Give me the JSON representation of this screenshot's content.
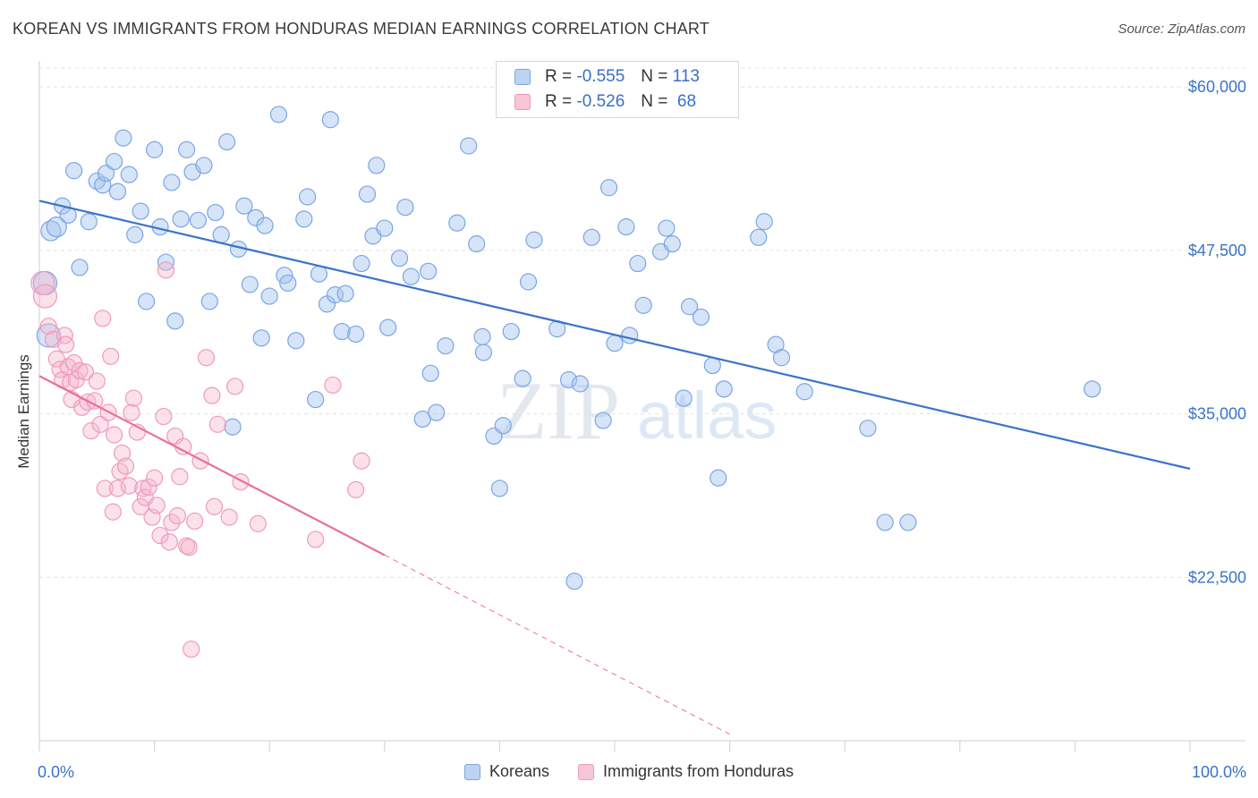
{
  "title": "KOREAN VS IMMIGRANTS FROM HONDURAS MEDIAN EARNINGS CORRELATION CHART",
  "source": "Source: ZipAtlas.com",
  "watermark": {
    "zip": "ZIP",
    "atlas": "atlas"
  },
  "legend": {
    "rows": [
      {
        "r_label": "R =",
        "r_value": "-0.555",
        "n_label": "N =",
        "n_value": "113"
      },
      {
        "r_label": "R =",
        "r_value": "-0.526",
        "n_label": "N =",
        "n_value": " 68"
      }
    ]
  },
  "chart_data": {
    "type": "scatter",
    "title": "KOREAN VS IMMIGRANTS FROM HONDURAS MEDIAN EARNINGS CORRELATION CHART",
    "xlabel": "",
    "ylabel": "Median Earnings",
    "xlim": [
      0,
      100
    ],
    "ylim": [
      10000,
      62000
    ],
    "x_tick_labels": [
      "0.0%",
      "100.0%"
    ],
    "y_ticks": [
      22500,
      35000,
      47500,
      60000
    ],
    "y_tick_labels": [
      "$22,500",
      "$35,000",
      "$47,500",
      "$60,000"
    ],
    "colors": {
      "koreans": "#7aa6e3",
      "honduras": "#f09ab8",
      "blue_line": "#3a74c8",
      "pink_line": "#e8709a",
      "tick_text": "#3a74c8"
    },
    "series": [
      {
        "name": "Koreans",
        "trend": {
          "x0": 0,
          "y0": 51300,
          "x1": 100,
          "y1": 30800
        },
        "points": [
          [
            0.5,
            45000
          ],
          [
            0.8,
            41000
          ],
          [
            1.0,
            49000
          ],
          [
            1.5,
            49300
          ],
          [
            2.0,
            50900
          ],
          [
            2.5,
            50200
          ],
          [
            3.0,
            53600
          ],
          [
            3.5,
            46200
          ],
          [
            4.3,
            49700
          ],
          [
            5.0,
            52800
          ],
          [
            5.5,
            52500
          ],
          [
            5.8,
            53400
          ],
          [
            6.5,
            54300
          ],
          [
            6.8,
            52000
          ],
          [
            7.3,
            56100
          ],
          [
            7.8,
            53300
          ],
          [
            8.3,
            48700
          ],
          [
            8.8,
            50500
          ],
          [
            9.3,
            43600
          ],
          [
            10.0,
            55200
          ],
          [
            10.5,
            49300
          ],
          [
            11.0,
            46600
          ],
          [
            11.5,
            52700
          ],
          [
            11.8,
            42100
          ],
          [
            12.3,
            49900
          ],
          [
            12.8,
            55200
          ],
          [
            13.3,
            53500
          ],
          [
            13.8,
            49800
          ],
          [
            14.3,
            54000
          ],
          [
            14.8,
            43600
          ],
          [
            15.3,
            50400
          ],
          [
            15.8,
            48700
          ],
          [
            16.3,
            55800
          ],
          [
            16.8,
            34000
          ],
          [
            17.3,
            47600
          ],
          [
            17.8,
            50900
          ],
          [
            18.3,
            44900
          ],
          [
            18.8,
            50000
          ],
          [
            19.3,
            40800
          ],
          [
            19.6,
            49400
          ],
          [
            20.0,
            44000
          ],
          [
            20.8,
            57900
          ],
          [
            21.3,
            45600
          ],
          [
            21.6,
            45000
          ],
          [
            22.3,
            40600
          ],
          [
            23.0,
            49900
          ],
          [
            23.3,
            51600
          ],
          [
            24.0,
            36100
          ],
          [
            24.3,
            45700
          ],
          [
            25.0,
            43400
          ],
          [
            25.3,
            57500
          ],
          [
            25.7,
            44100
          ],
          [
            26.3,
            41300
          ],
          [
            26.6,
            44200
          ],
          [
            27.5,
            41100
          ],
          [
            28.0,
            46500
          ],
          [
            28.5,
            51800
          ],
          [
            29.0,
            48600
          ],
          [
            29.3,
            54000
          ],
          [
            30.0,
            49200
          ],
          [
            30.3,
            41600
          ],
          [
            31.3,
            46900
          ],
          [
            31.8,
            50800
          ],
          [
            32.3,
            45500
          ],
          [
            33.3,
            34600
          ],
          [
            33.8,
            45900
          ],
          [
            34.0,
            38100
          ],
          [
            34.5,
            35100
          ],
          [
            35.3,
            40200
          ],
          [
            36.3,
            49600
          ],
          [
            37.3,
            55500
          ],
          [
            38.0,
            48000
          ],
          [
            38.5,
            40900
          ],
          [
            38.6,
            39700
          ],
          [
            39.5,
            33300
          ],
          [
            40.0,
            29300
          ],
          [
            40.3,
            34100
          ],
          [
            41.0,
            41300
          ],
          [
            42.0,
            37700
          ],
          [
            42.5,
            45100
          ],
          [
            43.0,
            48300
          ],
          [
            45.0,
            41500
          ],
          [
            46.0,
            37600
          ],
          [
            46.5,
            22200
          ],
          [
            47.0,
            37300
          ],
          [
            48.0,
            48500
          ],
          [
            49.0,
            34500
          ],
          [
            49.5,
            52300
          ],
          [
            50.0,
            40400
          ],
          [
            51.0,
            49300
          ],
          [
            51.3,
            41000
          ],
          [
            52.0,
            46500
          ],
          [
            52.5,
            43300
          ],
          [
            54.0,
            47400
          ],
          [
            54.5,
            49200
          ],
          [
            55.0,
            48000
          ],
          [
            56.0,
            36200
          ],
          [
            56.5,
            43200
          ],
          [
            57.5,
            42400
          ],
          [
            58.5,
            38700
          ],
          [
            59.0,
            30100
          ],
          [
            59.5,
            36900
          ],
          [
            62.5,
            48500
          ],
          [
            63.0,
            49700
          ],
          [
            64.0,
            40300
          ],
          [
            64.5,
            39300
          ],
          [
            66.5,
            36700
          ],
          [
            72.0,
            33900
          ],
          [
            73.5,
            26700
          ],
          [
            75.5,
            26700
          ],
          [
            91.5,
            36900
          ]
        ]
      },
      {
        "name": "Immigrants from Honduras",
        "trend": {
          "x0": 0,
          "y0": 37900,
          "x1": 30,
          "y1": 24200,
          "x_dash_end": 60,
          "y_dash_end": 10500
        },
        "points": [
          [
            0.3,
            45000
          ],
          [
            0.5,
            44000
          ],
          [
            0.8,
            41700
          ],
          [
            1.2,
            40700
          ],
          [
            1.5,
            39200
          ],
          [
            1.8,
            38400
          ],
          [
            2.0,
            37600
          ],
          [
            2.2,
            41000
          ],
          [
            2.3,
            40300
          ],
          [
            2.5,
            38600
          ],
          [
            2.7,
            37400
          ],
          [
            2.8,
            36100
          ],
          [
            3.0,
            38900
          ],
          [
            3.2,
            37600
          ],
          [
            3.5,
            38300
          ],
          [
            3.7,
            35500
          ],
          [
            4.0,
            38200
          ],
          [
            4.2,
            35900
          ],
          [
            4.5,
            33700
          ],
          [
            4.8,
            36000
          ],
          [
            5.0,
            37500
          ],
          [
            5.3,
            34200
          ],
          [
            5.5,
            42300
          ],
          [
            5.7,
            29300
          ],
          [
            6.0,
            35100
          ],
          [
            6.2,
            39400
          ],
          [
            6.4,
            27500
          ],
          [
            6.5,
            33400
          ],
          [
            6.8,
            29300
          ],
          [
            7.0,
            30600
          ],
          [
            7.2,
            32000
          ],
          [
            7.5,
            31000
          ],
          [
            7.8,
            29500
          ],
          [
            8.0,
            35100
          ],
          [
            8.2,
            36200
          ],
          [
            8.5,
            33600
          ],
          [
            8.8,
            27900
          ],
          [
            9.0,
            29300
          ],
          [
            9.2,
            28600
          ],
          [
            9.5,
            29400
          ],
          [
            9.8,
            27100
          ],
          [
            10.0,
            30100
          ],
          [
            10.2,
            28000
          ],
          [
            10.5,
            25700
          ],
          [
            10.8,
            34800
          ],
          [
            11.0,
            46000
          ],
          [
            11.3,
            25200
          ],
          [
            11.5,
            26700
          ],
          [
            11.8,
            33300
          ],
          [
            12.0,
            27200
          ],
          [
            12.2,
            30200
          ],
          [
            12.5,
            32500
          ],
          [
            12.8,
            24900
          ],
          [
            13.0,
            24800
          ],
          [
            13.2,
            17000
          ],
          [
            13.5,
            26800
          ],
          [
            14.0,
            31400
          ],
          [
            14.5,
            39300
          ],
          [
            15.0,
            36400
          ],
          [
            15.2,
            27900
          ],
          [
            15.5,
            34200
          ],
          [
            16.5,
            27100
          ],
          [
            17.0,
            37100
          ],
          [
            17.5,
            29800
          ],
          [
            19.0,
            26600
          ],
          [
            24.0,
            25400
          ],
          [
            25.5,
            37200
          ],
          [
            27.5,
            29200
          ],
          [
            28.0,
            31400
          ]
        ]
      }
    ]
  },
  "bottom_legend": {
    "koreans_label": "Koreans",
    "honduras_label": "Immigrants from Honduras"
  }
}
